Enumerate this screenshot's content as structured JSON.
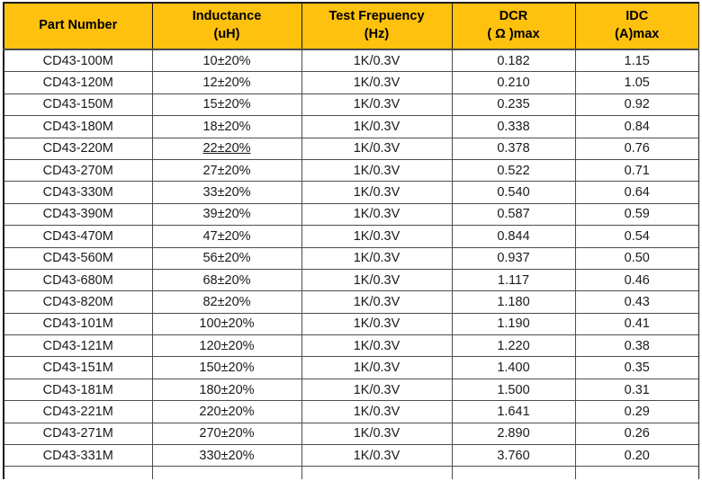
{
  "table": {
    "columns": [
      {
        "line1": "Part Number",
        "line2": ""
      },
      {
        "line1": "Inductance",
        "line2": "(uH)"
      },
      {
        "line1": "Test Frepuency",
        "line2": "(Hz)"
      },
      {
        "line1": "DCR",
        "line2": "( Ω )max"
      },
      {
        "line1": "IDC",
        "line2": "(A)max"
      }
    ],
    "rows": [
      {
        "part_number": "CD43-100M",
        "inductance": "10±20%",
        "test_frequency": "1K/0.3V",
        "dcr": "0.182",
        "idc": "1.15",
        "underline": false
      },
      {
        "part_number": "CD43-120M",
        "inductance": "12±20%",
        "test_frequency": "1K/0.3V",
        "dcr": "0.210",
        "idc": "1.05",
        "underline": false
      },
      {
        "part_number": "CD43-150M",
        "inductance": "15±20%",
        "test_frequency": "1K/0.3V",
        "dcr": "0.235",
        "idc": "0.92",
        "underline": false
      },
      {
        "part_number": "CD43-180M",
        "inductance": "18±20%",
        "test_frequency": "1K/0.3V",
        "dcr": "0.338",
        "idc": "0.84",
        "underline": false
      },
      {
        "part_number": "CD43-220M",
        "inductance": "22±20%",
        "test_frequency": "1K/0.3V",
        "dcr": "0.378",
        "idc": "0.76",
        "underline": true
      },
      {
        "part_number": "CD43-270M",
        "inductance": "27±20%",
        "test_frequency": "1K/0.3V",
        "dcr": "0.522",
        "idc": "0.71",
        "underline": false
      },
      {
        "part_number": "CD43-330M",
        "inductance": "33±20%",
        "test_frequency": "1K/0.3V",
        "dcr": "0.540",
        "idc": "0.64",
        "underline": false
      },
      {
        "part_number": "CD43-390M",
        "inductance": "39±20%",
        "test_frequency": "1K/0.3V",
        "dcr": "0.587",
        "idc": "0.59",
        "underline": false
      },
      {
        "part_number": "CD43-470M",
        "inductance": "47±20%",
        "test_frequency": "1K/0.3V",
        "dcr": "0.844",
        "idc": "0.54",
        "underline": false
      },
      {
        "part_number": "CD43-560M",
        "inductance": "56±20%",
        "test_frequency": "1K/0.3V",
        "dcr": "0.937",
        "idc": "0.50",
        "underline": false
      },
      {
        "part_number": "CD43-680M",
        "inductance": "68±20%",
        "test_frequency": "1K/0.3V",
        "dcr": "1.117",
        "idc": "0.46",
        "underline": false
      },
      {
        "part_number": "CD43-820M",
        "inductance": "82±20%",
        "test_frequency": "1K/0.3V",
        "dcr": "1.180",
        "idc": "0.43",
        "underline": false
      },
      {
        "part_number": "CD43-101M",
        "inductance": "100±20%",
        "test_frequency": "1K/0.3V",
        "dcr": "1.190",
        "idc": "0.41",
        "underline": false
      },
      {
        "part_number": "CD43-121M",
        "inductance": "120±20%",
        "test_frequency": "1K/0.3V",
        "dcr": "1.220",
        "idc": "0.38",
        "underline": false
      },
      {
        "part_number": "CD43-151M",
        "inductance": "150±20%",
        "test_frequency": "1K/0.3V",
        "dcr": "1.400",
        "idc": "0.35",
        "underline": false
      },
      {
        "part_number": "CD43-181M",
        "inductance": "180±20%",
        "test_frequency": "1K/0.3V",
        "dcr": "1.500",
        "idc": "0.31",
        "underline": false
      },
      {
        "part_number": "CD43-221M",
        "inductance": "220±20%",
        "test_frequency": "1K/0.3V",
        "dcr": "1.641",
        "idc": "0.29",
        "underline": false
      },
      {
        "part_number": "CD43-271M",
        "inductance": "270±20%",
        "test_frequency": "1K/0.3V",
        "dcr": "2.890",
        "idc": "0.26",
        "underline": false
      },
      {
        "part_number": "CD43-331M",
        "inductance": "330±20%",
        "test_frequency": "1K/0.3V",
        "dcr": "3.760",
        "idc": "0.20",
        "underline": false
      }
    ]
  },
  "colors": {
    "header_bg": "#FEC10E",
    "header_text": "#000000",
    "grid_line": "#4d4d4d",
    "outer_border": "#1c1c1c",
    "row_text": "#1a1a1a",
    "row_bg": "#ffffff"
  }
}
